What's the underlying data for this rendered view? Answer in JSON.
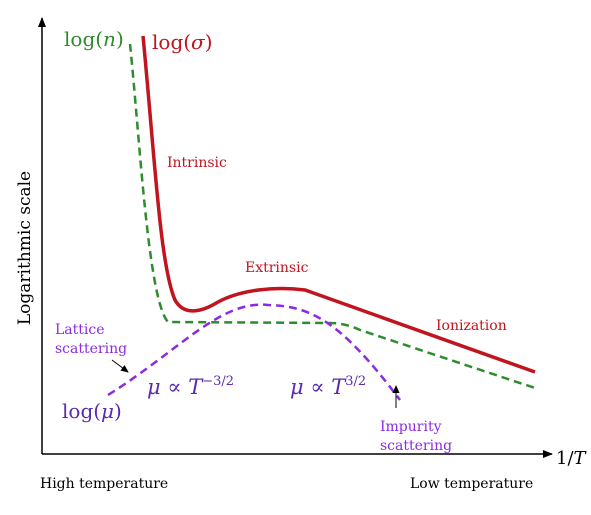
{
  "axes": {
    "ylabel": "Logarithmic scale",
    "xlabel_left": "High temperature",
    "xlabel_right": "Low temperature",
    "x_axis_name_main": "1/",
    "x_axis_name_var": "T"
  },
  "curves": {
    "sigma": {
      "label_prefix": "log(",
      "label_var": "σ",
      "label_suffix": ")",
      "color": "#c0141e"
    },
    "n": {
      "label_prefix": "log(",
      "label_var": "n",
      "label_suffix": ")",
      "color": "#2e8b2e"
    },
    "mu": {
      "label_prefix": "log(",
      "label_var": "μ",
      "label_suffix": ")",
      "color": "#8a2be2"
    }
  },
  "regions": {
    "intrinsic": "Intrinsic",
    "extrinsic": "Extrinsic",
    "ionization": "Ionization"
  },
  "annotations": {
    "lattice_line1": "Lattice",
    "lattice_line2": "scattering",
    "impurity_line1": "Impurity",
    "impurity_line2": "scattering",
    "mu_high_base": "μ ∝ T",
    "mu_high_exp": "−3/2",
    "mu_low_base": "μ ∝ T",
    "mu_low_exp": "3/2"
  }
}
